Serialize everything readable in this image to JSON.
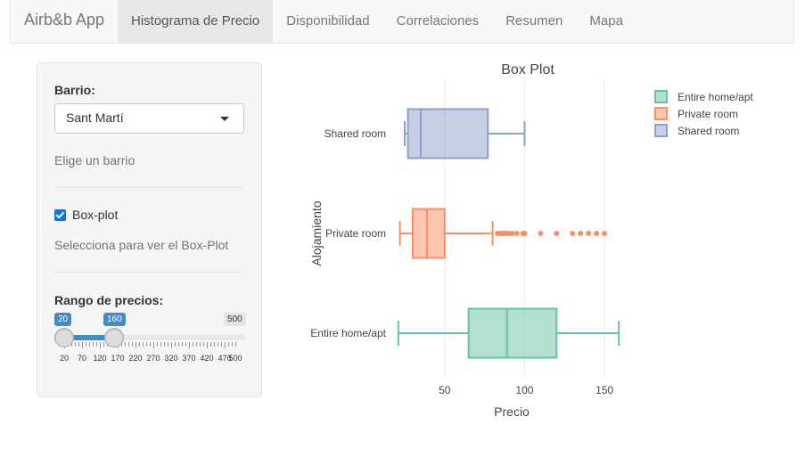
{
  "app": {
    "brand": "Airb&b App"
  },
  "nav": {
    "tabs": [
      {
        "label": "Histograma de Precio",
        "active": true
      },
      {
        "label": "Disponibilidad",
        "active": false
      },
      {
        "label": "Correlaciones",
        "active": false
      },
      {
        "label": "Resumen",
        "active": false
      },
      {
        "label": "Mapa",
        "active": false
      }
    ]
  },
  "sidebar": {
    "barrio_label": "Barrio:",
    "barrio_value": "Sant Martí",
    "barrio_help": "Elige un barrio",
    "boxplot_label": "Box-plot",
    "boxplot_checked": true,
    "boxplot_help": "Selecciona para ver el Box-Plot",
    "rango_label": "Rango de precios:",
    "slider": {
      "min": 20,
      "max": 500,
      "from": 20,
      "to": 160,
      "from_label": "20",
      "to_label": "160",
      "max_label": "500",
      "tick_labels": [
        "20",
        "70",
        "120",
        "170",
        "220",
        "270",
        "320",
        "370",
        "420",
        "470",
        "500"
      ]
    }
  },
  "chart_data": {
    "type": "box",
    "title": "Box Plot",
    "xlabel": "Precio",
    "ylabel": "Alojamiento",
    "xlim": [
      20,
      165
    ],
    "xticks": [
      50,
      100,
      150
    ],
    "xtick_labels": [
      "50",
      "100",
      "150"
    ],
    "grid": true,
    "legend_position": "top-right",
    "series": [
      {
        "name": "Entire home/apt",
        "color": "#66c2a5",
        "fill": "rgba(102,194,165,0.5)",
        "whisker_low": 21,
        "q1": 65,
        "median": 89,
        "q3": 120,
        "whisker_high": 159,
        "outliers": []
      },
      {
        "name": "Private room",
        "color": "#fc8d62",
        "fill": "rgba(252,141,98,0.5)",
        "whisker_low": 22,
        "q1": 30,
        "median": 39,
        "q3": 50,
        "whisker_high": 80,
        "outliers": [
          83,
          85,
          86,
          87,
          88,
          90,
          92,
          95,
          99,
          100,
          110,
          120,
          130,
          135,
          140,
          145,
          150
        ]
      },
      {
        "name": "Shared room",
        "color": "#8da0cb",
        "fill": "rgba(141,160,203,0.5)",
        "whisker_low": 25,
        "q1": 27,
        "median": 35,
        "q3": 77,
        "whisker_high": 100,
        "outliers": []
      }
    ]
  }
}
